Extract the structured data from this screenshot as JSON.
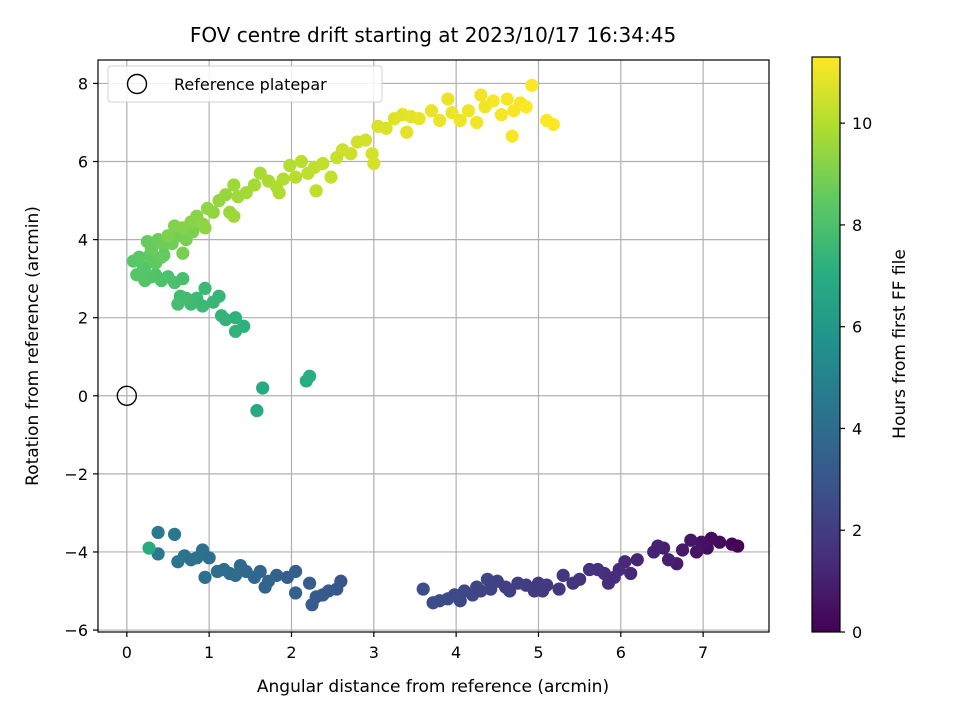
{
  "chart_data": {
    "type": "scatter",
    "title": "FOV centre drift starting at 2023/10/17 16:34:45",
    "xlabel": "Angular distance from reference (arcmin)",
    "ylabel": "Rotation from reference (arcmin)",
    "xlim": [
      -0.35,
      7.8
    ],
    "ylim": [
      -6.05,
      8.6
    ],
    "xticks": [
      0,
      1,
      2,
      3,
      4,
      5,
      6,
      7
    ],
    "yticks": [
      -6,
      -4,
      -2,
      0,
      2,
      4,
      6,
      8
    ],
    "xtick_labels": [
      "0",
      "1",
      "2",
      "3",
      "4",
      "5",
      "6",
      "7"
    ],
    "ytick_labels": [
      "−6",
      "−4",
      "−2",
      "0",
      "2",
      "4",
      "6",
      "8"
    ],
    "grid": true,
    "legend": {
      "position": "top-left",
      "label": "Reference platepar",
      "marker": "open-circle"
    },
    "reference_point": {
      "x": 0,
      "y": 0
    },
    "colorbar": {
      "label": "Hours from first FF file",
      "colormap": "viridis",
      "range": [
        0,
        11.3
      ],
      "ticks": [
        0,
        2,
        4,
        6,
        8,
        10
      ],
      "tick_labels": [
        "0",
        "2",
        "4",
        "6",
        "8",
        "10"
      ]
    },
    "points": [
      [
        7.42,
        -3.85,
        0.05
      ],
      [
        7.35,
        -3.8,
        0.15
      ],
      [
        7.2,
        -3.75,
        0.3
      ],
      [
        7.1,
        -3.65,
        0.4
      ],
      [
        7.05,
        -3.9,
        0.45
      ],
      [
        6.98,
        -3.75,
        0.55
      ],
      [
        6.92,
        -4.0,
        0.6
      ],
      [
        6.85,
        -3.7,
        0.7
      ],
      [
        6.75,
        -3.95,
        0.8
      ],
      [
        6.68,
        -4.3,
        0.85
      ],
      [
        6.58,
        -4.2,
        0.95
      ],
      [
        6.52,
        -3.9,
        1.0
      ],
      [
        6.45,
        -3.85,
        1.05
      ],
      [
        6.4,
        -4.0,
        1.1
      ],
      [
        6.2,
        -4.2,
        1.2
      ],
      [
        6.12,
        -4.55,
        1.25
      ],
      [
        6.05,
        -4.25,
        1.3
      ],
      [
        5.98,
        -4.45,
        1.35
      ],
      [
        5.92,
        -4.65,
        1.4
      ],
      [
        5.85,
        -4.8,
        1.45
      ],
      [
        5.8,
        -4.55,
        1.5
      ],
      [
        5.72,
        -4.45,
        1.55
      ],
      [
        5.62,
        -4.45,
        1.6
      ],
      [
        5.5,
        -4.7,
        1.65
      ],
      [
        5.42,
        -4.8,
        1.7
      ],
      [
        5.3,
        -4.6,
        1.75
      ],
      [
        5.25,
        -4.95,
        1.8
      ],
      [
        5.1,
        -4.85,
        1.85
      ],
      [
        5.0,
        -4.8,
        1.9
      ],
      [
        4.95,
        -5.0,
        1.95
      ],
      [
        4.85,
        -4.85,
        2.0
      ],
      [
        4.75,
        -4.8,
        2.05
      ],
      [
        4.65,
        -5.0,
        2.1
      ],
      [
        4.5,
        -4.75,
        2.15
      ],
      [
        4.42,
        -4.95,
        2.2
      ],
      [
        4.38,
        -4.7,
        2.25
      ],
      [
        4.25,
        -4.9,
        2.3
      ],
      [
        4.2,
        -5.1,
        2.35
      ],
      [
        4.1,
        -5.0,
        2.4
      ],
      [
        4.05,
        -5.25,
        2.45
      ],
      [
        3.98,
        -5.1,
        2.5
      ],
      [
        3.9,
        -5.2,
        2.55
      ],
      [
        3.8,
        -5.25,
        2.6
      ],
      [
        3.72,
        -5.3,
        2.65
      ],
      [
        3.6,
        -4.95,
        2.7
      ],
      [
        4.3,
        -5.0,
        2.3
      ],
      [
        4.6,
        -4.9,
        2.1
      ],
      [
        5.05,
        -5.0,
        1.9
      ],
      [
        2.6,
        -4.75,
        3.0
      ],
      [
        2.55,
        -4.95,
        3.1
      ],
      [
        2.45,
        -5.0,
        3.15
      ],
      [
        2.38,
        -5.1,
        3.2
      ],
      [
        2.3,
        -5.15,
        3.25
      ],
      [
        2.25,
        -5.35,
        3.3
      ],
      [
        2.22,
        -4.8,
        3.35
      ],
      [
        2.05,
        -4.5,
        3.4
      ],
      [
        2.05,
        -5.05,
        3.45
      ],
      [
        1.95,
        -4.65,
        3.5
      ],
      [
        1.82,
        -4.6,
        3.55
      ],
      [
        1.72,
        -4.75,
        3.6
      ],
      [
        1.68,
        -4.9,
        3.65
      ],
      [
        1.62,
        -4.5,
        3.7
      ],
      [
        1.55,
        -4.65,
        3.75
      ],
      [
        1.45,
        -4.5,
        3.8
      ],
      [
        1.38,
        -4.35,
        3.85
      ],
      [
        1.32,
        -4.6,
        3.9
      ],
      [
        1.25,
        -4.55,
        3.95
      ],
      [
        1.18,
        -4.45,
        4.0
      ],
      [
        1.1,
        -4.5,
        4.05
      ],
      [
        1.0,
        -4.15,
        4.1
      ],
      [
        0.95,
        -4.65,
        4.15
      ],
      [
        0.92,
        -3.95,
        4.2
      ],
      [
        0.85,
        -4.15,
        4.25
      ],
      [
        0.78,
        -4.2,
        4.3
      ],
      [
        0.7,
        -4.1,
        4.35
      ],
      [
        0.62,
        -4.25,
        4.4
      ],
      [
        0.58,
        -3.55,
        4.45
      ],
      [
        0.38,
        -4.05,
        4.5
      ],
      [
        0.38,
        -3.5,
        4.55
      ],
      [
        0.27,
        -3.9,
        6.9
      ],
      [
        1.58,
        -0.38,
        6.75
      ],
      [
        1.65,
        0.2,
        6.85
      ],
      [
        2.18,
        0.38,
        7.0
      ],
      [
        2.22,
        0.5,
        7.05
      ],
      [
        1.42,
        1.78,
        7.2
      ],
      [
        1.32,
        2.0,
        7.25
      ],
      [
        1.32,
        1.65,
        7.3
      ],
      [
        1.2,
        1.95,
        7.35
      ],
      [
        1.15,
        2.05,
        7.4
      ],
      [
        1.12,
        2.55,
        7.45
      ],
      [
        1.05,
        2.4,
        7.5
      ],
      [
        0.95,
        2.75,
        7.55
      ],
      [
        0.92,
        2.3,
        7.6
      ],
      [
        0.85,
        2.5,
        7.65
      ],
      [
        0.78,
        2.35,
        7.7
      ],
      [
        0.72,
        2.5,
        7.75
      ],
      [
        0.65,
        2.55,
        7.8
      ],
      [
        0.62,
        2.35,
        7.85
      ],
      [
        0.68,
        3.0,
        7.9
      ],
      [
        0.58,
        2.9,
        7.95
      ],
      [
        0.5,
        3.05,
        8.0
      ],
      [
        0.42,
        2.95,
        8.05
      ],
      [
        0.35,
        3.1,
        8.1
      ],
      [
        0.3,
        3.05,
        8.15
      ],
      [
        0.22,
        2.95,
        8.2
      ],
      [
        0.12,
        3.1,
        8.25
      ],
      [
        0.08,
        3.45,
        8.3
      ],
      [
        0.15,
        3.55,
        8.35
      ],
      [
        0.22,
        3.3,
        8.4
      ],
      [
        0.28,
        3.6,
        8.45
      ],
      [
        0.35,
        3.4,
        8.5
      ],
      [
        0.42,
        3.55,
        8.55
      ],
      [
        0.25,
        3.95,
        8.6
      ],
      [
        0.3,
        3.75,
        8.65
      ],
      [
        0.38,
        4.0,
        8.7
      ],
      [
        0.45,
        3.85,
        8.75
      ],
      [
        0.55,
        3.9,
        8.8
      ],
      [
        0.62,
        4.1,
        8.85
      ],
      [
        0.68,
        3.65,
        8.9
      ],
      [
        0.72,
        4.0,
        8.95
      ],
      [
        0.8,
        4.2,
        9.0
      ],
      [
        0.5,
        4.1,
        9.05
      ],
      [
        0.58,
        4.35,
        9.1
      ],
      [
        0.68,
        4.3,
        9.15
      ],
      [
        0.78,
        4.45,
        9.2
      ],
      [
        0.85,
        4.6,
        9.25
      ],
      [
        0.92,
        4.4,
        9.3
      ],
      [
        0.98,
        4.8,
        9.35
      ],
      [
        1.05,
        4.7,
        9.4
      ],
      [
        1.12,
        5.0,
        9.45
      ],
      [
        1.2,
        5.15,
        9.5
      ],
      [
        1.25,
        4.7,
        9.55
      ],
      [
        1.3,
        5.4,
        9.6
      ],
      [
        1.35,
        5.1,
        9.65
      ],
      [
        1.45,
        5.2,
        9.7
      ],
      [
        1.55,
        5.4,
        9.75
      ],
      [
        1.62,
        5.7,
        9.8
      ],
      [
        1.72,
        5.5,
        9.85
      ],
      [
        1.82,
        5.35,
        9.9
      ],
      [
        1.9,
        5.55,
        9.95
      ],
      [
        1.98,
        5.9,
        10.0
      ],
      [
        2.05,
        5.6,
        10.05
      ],
      [
        2.12,
        6.0,
        10.1
      ],
      [
        2.2,
        5.7,
        10.15
      ],
      [
        2.28,
        5.85,
        10.2
      ],
      [
        2.38,
        5.95,
        10.25
      ],
      [
        2.48,
        5.6,
        10.3
      ],
      [
        2.55,
        6.1,
        10.35
      ],
      [
        2.62,
        6.3,
        10.4
      ],
      [
        2.72,
        6.2,
        10.45
      ],
      [
        2.8,
        6.5,
        10.5
      ],
      [
        2.9,
        6.55,
        10.55
      ],
      [
        2.98,
        6.2,
        10.6
      ],
      [
        3.05,
        6.9,
        10.65
      ],
      [
        3.15,
        6.85,
        10.7
      ],
      [
        3.25,
        7.1,
        10.75
      ],
      [
        3.35,
        7.2,
        10.8
      ],
      [
        3.45,
        7.15,
        10.85
      ],
      [
        3.55,
        7.1,
        10.9
      ],
      [
        3.7,
        7.3,
        10.95
      ],
      [
        3.8,
        7.05,
        11.0
      ],
      [
        3.95,
        7.25,
        11.0
      ],
      [
        4.05,
        7.05,
        11.05
      ],
      [
        4.15,
        7.3,
        11.05
      ],
      [
        4.25,
        7.0,
        11.1
      ],
      [
        4.35,
        7.4,
        11.1
      ],
      [
        4.45,
        7.55,
        11.15
      ],
      [
        4.55,
        7.2,
        11.15
      ],
      [
        4.62,
        7.6,
        11.2
      ],
      [
        4.7,
        7.3,
        11.2
      ],
      [
        4.78,
        7.5,
        11.22
      ],
      [
        4.85,
        7.4,
        11.24
      ],
      [
        4.92,
        7.95,
        11.26
      ],
      [
        5.1,
        7.05,
        11.28
      ],
      [
        5.18,
        6.95,
        11.3
      ],
      [
        4.68,
        6.65,
        11.2
      ],
      [
        3.4,
        6.75,
        10.85
      ],
      [
        3.0,
        5.95,
        10.6
      ],
      [
        2.3,
        5.25,
        10.2
      ],
      [
        1.85,
        5.2,
        9.9
      ],
      [
        1.3,
        4.6,
        9.6
      ],
      [
        0.95,
        4.3,
        9.35
      ],
      [
        0.45,
        3.6,
        8.55
      ],
      [
        0.2,
        3.25,
        8.25
      ],
      [
        3.9,
        7.6,
        10.95
      ],
      [
        4.3,
        7.7,
        11.1
      ]
    ]
  }
}
